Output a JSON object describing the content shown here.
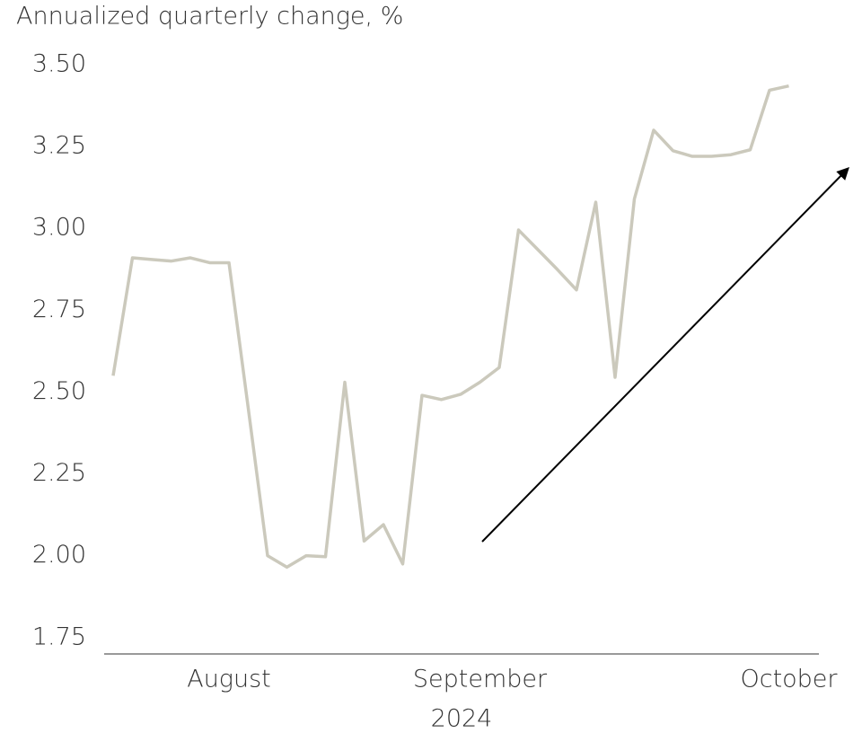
{
  "chart_data": {
    "type": "line",
    "title": "Annualized quarterly change, %",
    "x_label": "2024",
    "categories": [
      null,
      null,
      null,
      null,
      null,
      null,
      "August",
      null,
      null,
      null,
      null,
      null,
      null,
      null,
      null,
      null,
      null,
      null,
      null,
      "September",
      null,
      null,
      null,
      null,
      null,
      null,
      null,
      null,
      null,
      null,
      null,
      null,
      null,
      null,
      null,
      "October"
    ],
    "series": [
      {
        "name": "Annualized quarterly change",
        "color": "#cbc9bc",
        "values": [
          2.55,
          2.91,
          2.905,
          2.9,
          2.91,
          2.895,
          2.895,
          2.45,
          2.0,
          1.965,
          2.0,
          1.997,
          2.53,
          2.045,
          2.095,
          1.975,
          2.49,
          2.477,
          2.493,
          2.53,
          2.575,
          2.995,
          2.935,
          2.875,
          2.812,
          3.08,
          2.545,
          3.09,
          3.3,
          3.237,
          3.22,
          3.22,
          3.225,
          3.24,
          3.422,
          3.435
        ]
      }
    ],
    "ylim": [
      1.7,
      3.5
    ],
    "yticks": [
      {
        "value": 1.75,
        "label": "1.75"
      },
      {
        "value": 2.0,
        "label": "2.00"
      },
      {
        "value": 2.25,
        "label": "2.25"
      },
      {
        "value": 2.5,
        "label": "2.50"
      },
      {
        "value": 2.75,
        "label": "2.75"
      },
      {
        "value": 3.0,
        "label": "3.00"
      },
      {
        "value": 3.25,
        "label": "3.25"
      },
      {
        "value": 3.5,
        "label": "3.50"
      }
    ],
    "grid": false
  }
}
